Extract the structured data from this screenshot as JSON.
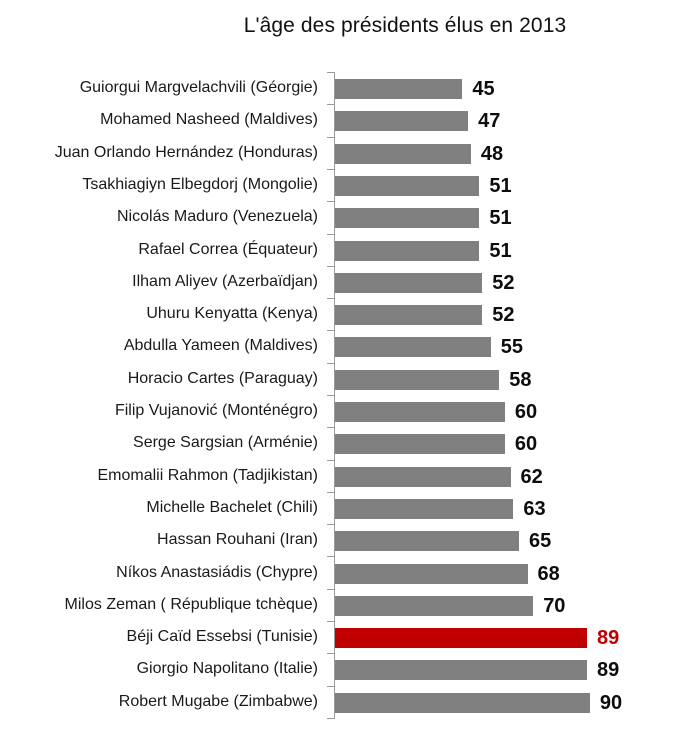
{
  "chart_data": {
    "type": "bar",
    "orientation": "horizontal",
    "title": "L'âge des présidents élus en 2013",
    "xlabel": "",
    "ylabel": "",
    "grid": false,
    "legend": null,
    "xlim": [
      0,
      90
    ],
    "highlight_color": "#C00000",
    "bar_color": "#808080",
    "highlighted_category": "Béji Caïd Essebsi (Tunisie)",
    "categories": [
      "Guiorgui Margvelachvili (Géorgie)",
      "Mohamed Nasheed (Maldives)",
      "Juan Orlando Hernández (Honduras)",
      "Tsakhiagiyn Elbegdorj (Mongolie)",
      "Nicolás Maduro (Venezuela)",
      "Rafael Correa (Équateur)",
      "Ilham Aliyev (Azerbaïdjan)",
      "Uhuru Kenyatta (Kenya)",
      "Abdulla Yameen (Maldives)",
      "Horacio Cartes (Paraguay)",
      "Filip Vujanović (Monténégro)",
      "Serge Sargsian (Arménie)",
      "Emomalii Rahmon (Tadjikistan)",
      "Michelle Bachelet (Chili)",
      "Hassan Rouhani (Iran)",
      "Níkos Anastasiádis (Chypre)",
      "Milos Zeman ( République tchèque)",
      "Béji Caïd Essebsi (Tunisie)",
      "Giorgio Napolitano (Italie)",
      "Robert Mugabe (Zimbabwe)"
    ],
    "values": [
      45,
      47,
      48,
      51,
      51,
      51,
      52,
      52,
      55,
      58,
      60,
      60,
      62,
      63,
      65,
      68,
      70,
      89,
      89,
      90
    ],
    "data_labels": [
      "45",
      "47",
      "48",
      "51",
      "51",
      "51",
      "52",
      "52",
      "55",
      "58",
      "60",
      "60",
      "62",
      "63",
      "65",
      "68",
      "70",
      "89",
      "89",
      "90"
    ]
  }
}
